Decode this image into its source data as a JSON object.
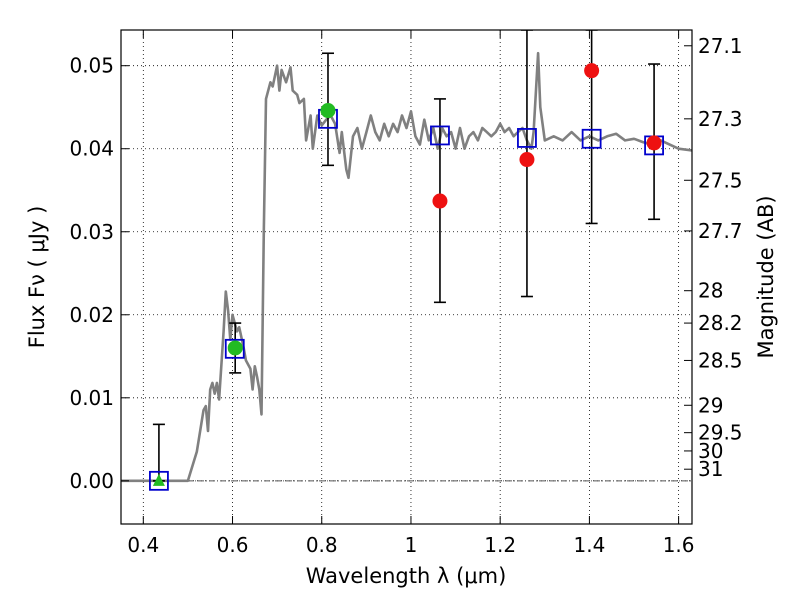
{
  "chart_data": {
    "type": "scatter",
    "xlabel": "Wavelength  λ (μm)",
    "ylabel": "Flux  Fν  ( μJy )",
    "y2label": "Magnitude (AB)",
    "xlim": [
      0.35,
      1.63
    ],
    "ylim": [
      -0.0052,
      0.0543
    ],
    "grid": true,
    "xticks": [
      {
        "value": 0.4,
        "label": "0.4"
      },
      {
        "value": 0.6,
        "label": "0.6"
      },
      {
        "value": 0.8,
        "label": "0.8"
      },
      {
        "value": 1.0,
        "label": "1"
      },
      {
        "value": 1.2,
        "label": "1.2"
      },
      {
        "value": 1.4,
        "label": "1.4"
      },
      {
        "value": 1.6,
        "label": "1.6"
      }
    ],
    "yticks": [
      {
        "value": 0.0,
        "label": "0.00"
      },
      {
        "value": 0.01,
        "label": "0.01"
      },
      {
        "value": 0.02,
        "label": "0.02"
      },
      {
        "value": 0.03,
        "label": "0.03"
      },
      {
        "value": 0.04,
        "label": "0.04"
      },
      {
        "value": 0.05,
        "label": "0.05"
      }
    ],
    "y2ticks": [
      {
        "flux": 0.0524,
        "label": "27.1"
      },
      {
        "flux": 0.0436,
        "label": "27.3"
      },
      {
        "flux": 0.0362,
        "label": "27.5"
      },
      {
        "flux": 0.0301,
        "label": "27.7"
      },
      {
        "flux": 0.0229,
        "label": "28"
      },
      {
        "flux": 0.019,
        "label": "28.2"
      },
      {
        "flux": 0.0145,
        "label": "28.5"
      },
      {
        "flux": 0.0091,
        "label": "29"
      },
      {
        "flux": 0.0058,
        "label": "29.5"
      },
      {
        "flux": 0.0036,
        "label": "30"
      },
      {
        "flux": 0.0014,
        "label": "31"
      }
    ],
    "model_spectrum": {
      "color": "#808080",
      "points": [
        [
          0.35,
          0.0
        ],
        [
          0.5,
          0.0
        ],
        [
          0.52,
          0.0035
        ],
        [
          0.535,
          0.0085
        ],
        [
          0.54,
          0.009
        ],
        [
          0.545,
          0.006
        ],
        [
          0.55,
          0.011
        ],
        [
          0.555,
          0.0118
        ],
        [
          0.56,
          0.0105
        ],
        [
          0.565,
          0.0118
        ],
        [
          0.57,
          0.0098
        ],
        [
          0.58,
          0.018
        ],
        [
          0.585,
          0.0228
        ],
        [
          0.59,
          0.0205
        ],
        [
          0.595,
          0.017
        ],
        [
          0.6,
          0.02
        ],
        [
          0.61,
          0.018
        ],
        [
          0.615,
          0.0185
        ],
        [
          0.625,
          0.016
        ],
        [
          0.63,
          0.0145
        ],
        [
          0.64,
          0.0135
        ],
        [
          0.645,
          0.011
        ],
        [
          0.65,
          0.0138
        ],
        [
          0.655,
          0.0125
        ],
        [
          0.66,
          0.011
        ],
        [
          0.665,
          0.008
        ],
        [
          0.67,
          0.03
        ],
        [
          0.675,
          0.046
        ],
        [
          0.685,
          0.048
        ],
        [
          0.69,
          0.0475
        ],
        [
          0.7,
          0.05
        ],
        [
          0.705,
          0.047
        ],
        [
          0.71,
          0.0495
        ],
        [
          0.72,
          0.048
        ],
        [
          0.73,
          0.0498
        ],
        [
          0.735,
          0.047
        ],
        [
          0.745,
          0.0465
        ],
        [
          0.75,
          0.0455
        ],
        [
          0.76,
          0.046
        ],
        [
          0.765,
          0.041
        ],
        [
          0.775,
          0.044
        ],
        [
          0.78,
          0.04
        ],
        [
          0.79,
          0.044
        ],
        [
          0.8,
          0.0428
        ],
        [
          0.81,
          0.0435
        ],
        [
          0.82,
          0.044
        ],
        [
          0.83,
          0.043
        ],
        [
          0.84,
          0.0395
        ],
        [
          0.845,
          0.042
        ],
        [
          0.855,
          0.0375
        ],
        [
          0.86,
          0.0365
        ],
        [
          0.87,
          0.0415
        ],
        [
          0.88,
          0.0425
        ],
        [
          0.89,
          0.04
        ],
        [
          0.9,
          0.042
        ],
        [
          0.91,
          0.044
        ],
        [
          0.92,
          0.042
        ],
        [
          0.93,
          0.041
        ],
        [
          0.94,
          0.043
        ],
        [
          0.95,
          0.0415
        ],
        [
          0.96,
          0.043
        ],
        [
          0.97,
          0.042
        ],
        [
          0.98,
          0.044
        ],
        [
          0.99,
          0.0425
        ],
        [
          1.0,
          0.0445
        ],
        [
          1.01,
          0.0415
        ],
        [
          1.02,
          0.0405
        ],
        [
          1.03,
          0.0435
        ],
        [
          1.04,
          0.041
        ],
        [
          1.05,
          0.0425
        ],
        [
          1.06,
          0.04
        ],
        [
          1.07,
          0.0425
        ],
        [
          1.08,
          0.0415
        ],
        [
          1.09,
          0.042
        ],
        [
          1.1,
          0.04
        ],
        [
          1.11,
          0.0425
        ],
        [
          1.12,
          0.04
        ],
        [
          1.13,
          0.0415
        ],
        [
          1.14,
          0.042
        ],
        [
          1.15,
          0.041
        ],
        [
          1.16,
          0.0425
        ],
        [
          1.17,
          0.042
        ],
        [
          1.18,
          0.0415
        ],
        [
          1.19,
          0.042
        ],
        [
          1.2,
          0.043
        ],
        [
          1.21,
          0.042
        ],
        [
          1.22,
          0.0425
        ],
        [
          1.23,
          0.0415
        ],
        [
          1.24,
          0.042
        ],
        [
          1.25,
          0.0425
        ],
        [
          1.26,
          0.041
        ],
        [
          1.27,
          0.04
        ],
        [
          1.275,
          0.042
        ],
        [
          1.285,
          0.0515
        ],
        [
          1.29,
          0.045
        ],
        [
          1.3,
          0.041
        ],
        [
          1.32,
          0.0415
        ],
        [
          1.34,
          0.041
        ],
        [
          1.36,
          0.042
        ],
        [
          1.38,
          0.041
        ],
        [
          1.4,
          0.0415
        ],
        [
          1.42,
          0.041
        ],
        [
          1.44,
          0.0415
        ],
        [
          1.46,
          0.0418
        ],
        [
          1.48,
          0.041
        ],
        [
          1.5,
          0.0412
        ],
        [
          1.52,
          0.0408
        ],
        [
          1.54,
          0.0405
        ],
        [
          1.56,
          0.041
        ],
        [
          1.58,
          0.0405
        ],
        [
          1.6,
          0.04
        ],
        [
          1.63,
          0.0398
        ]
      ]
    },
    "model_photometry": {
      "marker": "open-square",
      "color": "#0000cc",
      "points": [
        [
          0.435,
          0.0
        ],
        [
          0.605,
          0.0159
        ],
        [
          0.814,
          0.0436
        ],
        [
          1.065,
          0.0416
        ],
        [
          1.26,
          0.0413
        ],
        [
          1.405,
          0.0412
        ],
        [
          1.545,
          0.0404
        ]
      ]
    },
    "detections": {
      "marker": "filled-circle",
      "color": "#22bb22",
      "points": [
        {
          "x": 0.606,
          "y": 0.016,
          "err_lo": 0.013,
          "err_hi": 0.019
        },
        {
          "x": 0.814,
          "y": 0.0446,
          "err_lo": 0.038,
          "err_hi": 0.0515
        }
      ]
    },
    "detection_triangle": {
      "marker": "filled-triangle",
      "color": "#22bb22",
      "points": [
        {
          "x": 0.435,
          "y": 0.0,
          "err_lo": 0.0,
          "err_hi": 0.0068
        }
      ]
    },
    "non_detections": {
      "marker": "filled-circle",
      "color": "#ee1111",
      "points": [
        {
          "x": 1.065,
          "y": 0.0337,
          "err_lo": 0.0215,
          "err_hi": 0.046
        },
        {
          "x": 1.26,
          "y": 0.0387,
          "err_lo": 0.0222,
          "err_hi": 0.0543
        },
        {
          "x": 1.405,
          "y": 0.0494,
          "err_lo": 0.031,
          "err_hi": 0.0543
        },
        {
          "x": 1.545,
          "y": 0.0407,
          "err_lo": 0.0315,
          "err_hi": 0.0502
        }
      ]
    },
    "zero_line": {
      "y": 0.0
    }
  }
}
